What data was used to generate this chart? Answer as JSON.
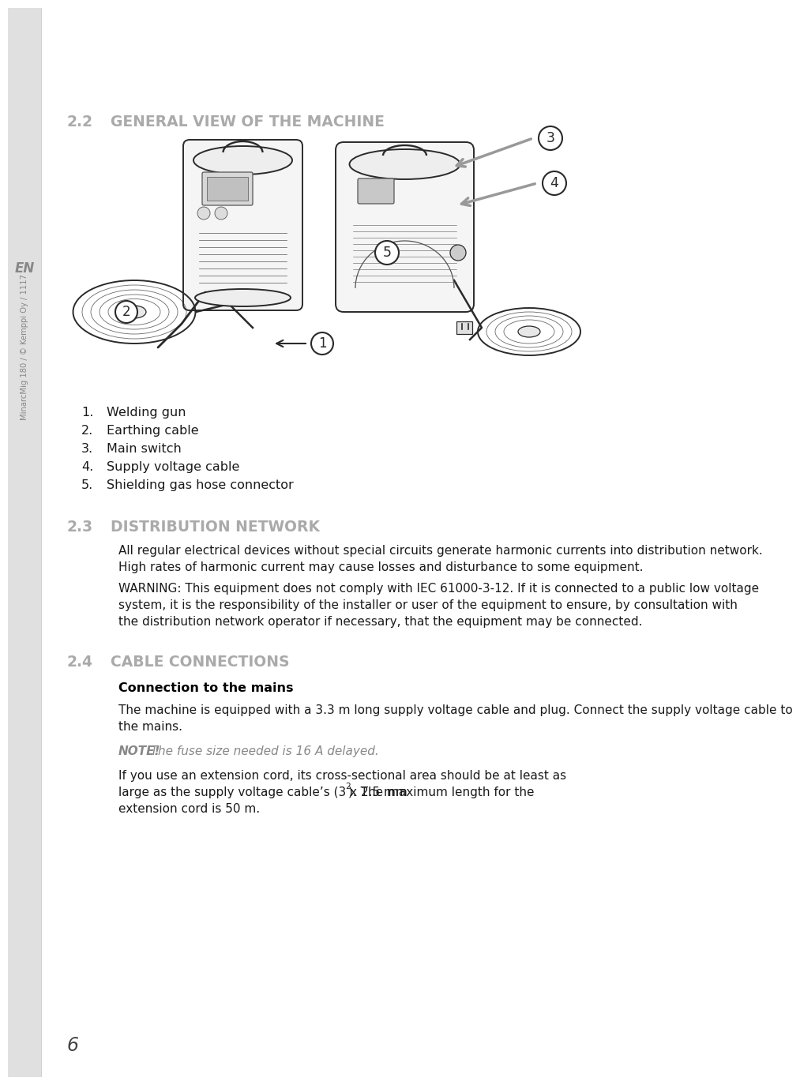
{
  "page_background": "#ffffff",
  "left_bar_color": "#e0e0e0",
  "left_bar_width": 42,
  "sidebar_text": "MinarcMig 180 / © Kemppi Oy / 1117",
  "sidebar_en": "EN",
  "section_heading_color": "#aaaaaa",
  "section_body_color": "#1a1a1a",
  "section_subheading_color": "#000000",
  "note_color": "#888888",
  "page_number": "6",
  "line_color": "#333333",
  "sec22_title_number": "2.2",
  "sec22_title_text": "GENERAL VIEW OF THE MACHINE",
  "sec22_items": [
    [
      "1.",
      "Welding gun"
    ],
    [
      "2.",
      "Earthing cable"
    ],
    [
      "3.",
      "Main switch"
    ],
    [
      "4.",
      "Supply voltage cable"
    ],
    [
      "5.",
      "Shielding gas hose connector"
    ]
  ],
  "sec23_number": "2.3",
  "sec23_title": "DISTRIBUTION NETWORK",
  "sec23_para1": "All regular electrical devices without special circuits generate harmonic currents into distribution network. High rates of harmonic current may cause losses and disturbance to some equipment.",
  "sec23_para2": "WARNING: This equipment does not comply with IEC 61000-3-12. If it is connected to a public low voltage system, it is the responsibility of the installer or user of the equipment to ensure, by consultation with the distribution network operator if necessary, that the equipment may be connected.",
  "sec24_number": "2.4",
  "sec24_title": "CABLE CONNECTIONS",
  "sec24_subhead": "Connection to the mains",
  "sec24_para1": "The machine is equipped with a 3.3 m long supply voltage cable and plug. Connect the supply voltage cable to the mains.",
  "sec24_note_bold": "NOTE!",
  "sec24_note_rest": " The fuse size needed is 16 A delayed.",
  "sec24_para3_line1": "If you use an extension cord, its cross-sectional area should be at least as",
  "sec24_para3_line2a": "large as the supply voltage cable’s (3 x 2.5 mm",
  "sec24_para3_line2b": "2",
  "sec24_para3_line2c": "). The maximum length for the",
  "sec24_para3_line3": "extension cord is 50 m."
}
